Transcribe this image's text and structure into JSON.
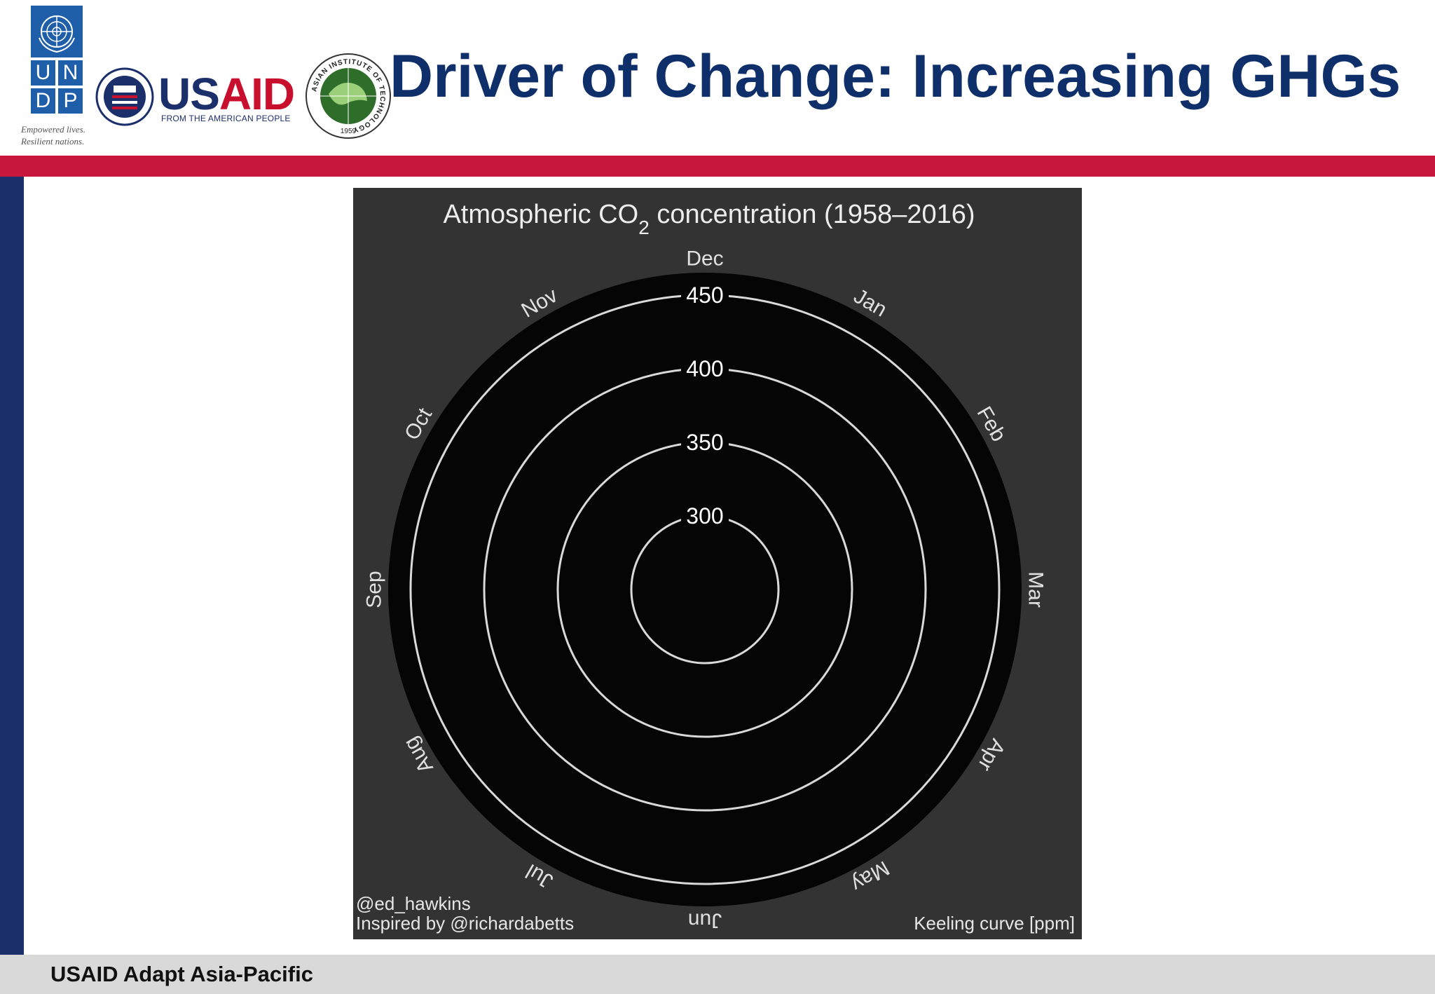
{
  "slide": {
    "title": "Driver of Change: Increasing GHGs",
    "footer": "USAID Adapt Asia-Pacific"
  },
  "logos": {
    "undp": {
      "letters": [
        "U",
        "N",
        "D",
        "P"
      ],
      "tagline_line1": "Empowered lives.",
      "tagline_line2": "Resilient nations."
    },
    "usaid": {
      "wordmark_us": "US",
      "wordmark_aid": "AID",
      "subtitle": "FROM THE AMERICAN PEOPLE"
    },
    "ait": {
      "ring_text": "ASIAN INSTITUTE OF TECHNOLOGY",
      "year": "1959"
    }
  },
  "colors": {
    "navy": "#1b2f6b",
    "title": "#0f2f6a",
    "red": "#c8163c",
    "undp_blue": "#1f5fa9",
    "usaid_red": "#c8102e",
    "footer_bg": "#d9d9d9",
    "chart_outer_bg": "#333333",
    "chart_disc": "#050505",
    "ring": "#d9d9d9",
    "ait_green": "#2e6e2a"
  },
  "chart_data": {
    "type": "polar-line",
    "title_prefix": "Atmospheric CO",
    "title_subscript": "2",
    "title_suffix": " concentration (1958–2016)",
    "radial_ticks": [
      300,
      350,
      400,
      450
    ],
    "radial_range": [
      250,
      460
    ],
    "angular_labels": [
      "Dec",
      "Jan",
      "Feb",
      "Mar",
      "Apr",
      "May",
      "Jun",
      "Jul",
      "Aug",
      "Sep",
      "Oct",
      "Nov"
    ],
    "credit_line1": "@ed_hawkins",
    "credit_line2": "Inspired by @richardabetts",
    "unit_label": "Keeling curve [ppm]",
    "series": []
  }
}
